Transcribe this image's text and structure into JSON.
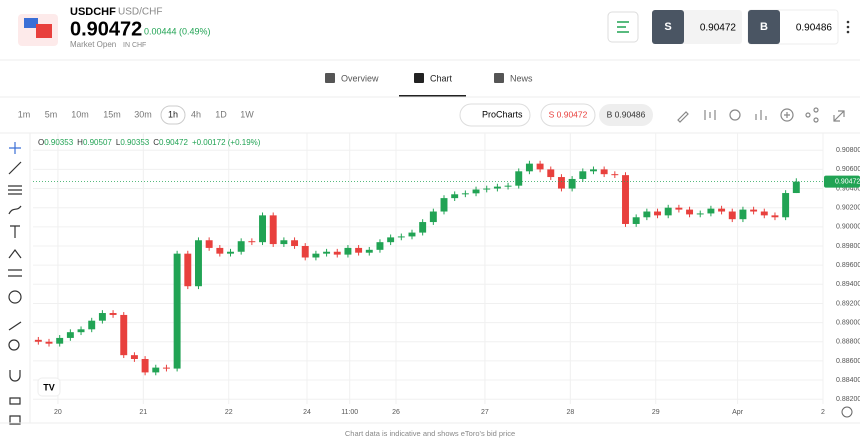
{
  "header": {
    "symbol": "USDCHF",
    "pair": "USD/CHF",
    "price": "0.90472",
    "change": "0.00444 (0.49%)",
    "status": "Market Open",
    "currency": "IN CHF",
    "sell": {
      "label": "S",
      "price": "0.90472"
    },
    "buy": {
      "label": "B",
      "price": "0.90486"
    }
  },
  "tabs": [
    "Overview",
    "Chart",
    "News"
  ],
  "toolbar": {
    "timeframes": [
      "1m",
      "5m",
      "10m",
      "15m",
      "30m",
      "1h",
      "4h",
      "1D",
      "1W"
    ],
    "procharts": "ProCharts",
    "sell": "S 0.90472",
    "buy": "B 0.90486"
  },
  "ohlc_legend": {
    "labels": [
      "O",
      "H",
      "L",
      "C"
    ],
    "change": "+0.00172 (+0.19%)"
  },
  "footer": "Chart data is indicative and shows eToro's bid price",
  "chart_data": {
    "type": "candlestick",
    "up_color": "#21a354",
    "down_color": "#e8403d",
    "x": [
      1.5,
      4.5,
      7.5,
      10.5,
      13.5,
      16.5,
      19.5,
      22.5,
      25.5,
      28.5,
      31.5,
      34.5,
      37.5,
      40.5,
      43.5,
      46.5,
      49.5,
      52.5,
      55.5,
      58.5,
      61.5,
      64.5,
      67.5,
      70.5,
      73.5,
      76.5,
      79.5,
      82.5,
      85.5,
      88.5,
      91.5,
      94.5,
      97.5,
      100.5,
      103.5,
      106.5,
      109.5,
      112.5,
      115.5,
      118.5,
      121.5,
      124.5,
      127.5,
      130.5,
      133.5,
      136.5,
      139.5,
      142.5,
      145.5,
      148.5,
      151.5,
      154.5,
      157.5,
      160.5,
      163.5,
      166.5,
      169.5,
      172.5,
      175.5,
      178.5,
      181.5,
      184.5,
      187.5,
      190.5,
      193.5,
      196.5,
      199.5,
      202.5,
      205.5,
      208.5,
      211.5,
      214.5
    ],
    "open": [
      0.8882,
      0.888,
      0.8878,
      0.8884,
      0.889,
      0.8893,
      0.8902,
      0.891,
      0.8908,
      0.8866,
      0.8862,
      0.8848,
      0.8853,
      0.8852,
      0.8972,
      0.8938,
      0.8986,
      0.8978,
      0.8972,
      0.8974,
      0.8985,
      0.8984,
      0.9012,
      0.8982,
      0.8986,
      0.898,
      0.8968,
      0.8972,
      0.8974,
      0.8971,
      0.8978,
      0.8973,
      0.8976,
      0.8984,
      0.8989,
      0.899,
      0.8994,
      0.9005,
      0.9016,
      0.903,
      0.9034,
      0.9035,
      0.9039,
      0.904,
      0.9042,
      0.9043,
      0.9058,
      0.9066,
      0.906,
      0.9052,
      0.904,
      0.905,
      0.9058,
      0.906,
      0.9055,
      0.9054,
      0.9003,
      0.901,
      0.9016,
      0.9012,
      0.902,
      0.9018,
      0.9013,
      0.9014,
      0.9019,
      0.9016,
      0.9008,
      0.9018,
      0.9016,
      0.9012,
      0.901,
      0.90353
    ],
    "high": [
      0.8885,
      0.8883,
      0.8887,
      0.8893,
      0.8896,
      0.8905,
      0.8913,
      0.8913,
      0.8911,
      0.8869,
      0.8865,
      0.8856,
      0.8856,
      0.8975,
      0.8975,
      0.8989,
      0.8989,
      0.8981,
      0.8977,
      0.8988,
      0.8988,
      0.9015,
      0.9015,
      0.8989,
      0.8989,
      0.8983,
      0.8975,
      0.8977,
      0.8977,
      0.8981,
      0.8981,
      0.8979,
      0.8987,
      0.8992,
      0.8993,
      0.8997,
      0.9008,
      0.9019,
      0.9033,
      0.9037,
      0.9038,
      0.9042,
      0.9043,
      0.9045,
      0.9046,
      0.9061,
      0.9069,
      0.9069,
      0.9063,
      0.9055,
      0.9053,
      0.9061,
      0.9063,
      0.9063,
      0.9058,
      0.9057,
      0.9013,
      0.9019,
      0.9019,
      0.9023,
      0.9023,
      0.9021,
      0.9017,
      0.9022,
      0.9022,
      0.9019,
      0.9021,
      0.9021,
      0.9019,
      0.9015,
      0.90383,
      0.90507
    ],
    "low": [
      0.8877,
      0.8875,
      0.8875,
      0.8881,
      0.8887,
      0.889,
      0.8899,
      0.8905,
      0.8863,
      0.8859,
      0.8845,
      0.8845,
      0.8849,
      0.8849,
      0.8935,
      0.8935,
      0.8975,
      0.8969,
      0.8969,
      0.8971,
      0.8981,
      0.8981,
      0.8979,
      0.8979,
      0.8977,
      0.8965,
      0.8965,
      0.8969,
      0.8968,
      0.8968,
      0.897,
      0.897,
      0.8973,
      0.8981,
      0.8986,
      0.8987,
      0.8991,
      0.9002,
      0.9013,
      0.9027,
      0.9031,
      0.9032,
      0.9036,
      0.9037,
      0.9039,
      0.904,
      0.9055,
      0.9057,
      0.9049,
      0.9037,
      0.9037,
      0.9047,
      0.9055,
      0.9052,
      0.9051,
      0.9,
      0.9,
      0.9007,
      0.9009,
      0.9009,
      0.9015,
      0.901,
      0.901,
      0.9011,
      0.9013,
      0.9005,
      0.9005,
      0.9013,
      0.9009,
      0.9007,
      0.9007,
      0.90353
    ],
    "close": [
      0.888,
      0.8878,
      0.8884,
      0.889,
      0.8893,
      0.8902,
      0.891,
      0.8908,
      0.8866,
      0.8862,
      0.8848,
      0.8853,
      0.8852,
      0.8972,
      0.8938,
      0.8986,
      0.8978,
      0.8972,
      0.8974,
      0.8985,
      0.8984,
      0.9012,
      0.8982,
      0.8986,
      0.898,
      0.8968,
      0.8972,
      0.8974,
      0.8971,
      0.8978,
      0.8973,
      0.8976,
      0.8984,
      0.8989,
      0.899,
      0.8994,
      0.9005,
      0.9016,
      0.903,
      0.9034,
      0.9035,
      0.9039,
      0.904,
      0.9042,
      0.9043,
      0.9058,
      0.9066,
      0.906,
      0.9052,
      0.904,
      0.905,
      0.9058,
      0.906,
      0.9055,
      0.9054,
      0.9003,
      0.901,
      0.9016,
      0.9012,
      0.902,
      0.9018,
      0.9013,
      0.9014,
      0.9019,
      0.9016,
      0.9008,
      0.9018,
      0.9016,
      0.9012,
      0.901,
      0.90353,
      0.90472
    ],
    "xlim": [
      0,
      222
    ],
    "xticks": [
      {
        "value": 7,
        "label": "20"
      },
      {
        "value": 31,
        "label": "21"
      },
      {
        "value": 55,
        "label": "22"
      },
      {
        "value": 77,
        "label": "24"
      },
      {
        "value": 89,
        "label": "11:00"
      },
      {
        "value": 102,
        "label": "26"
      },
      {
        "value": 127,
        "label": "27"
      },
      {
        "value": 151,
        "label": "28"
      },
      {
        "value": 175,
        "label": "29"
      },
      {
        "value": 198,
        "label": "Apr"
      },
      {
        "value": 222,
        "label": "2"
      }
    ],
    "ylim": [
      0.8815,
      0.9098
    ],
    "yticks": [
      {
        "value": 0.908,
        "label": "0.90800"
      },
      {
        "value": 0.906,
        "label": "0.90600"
      },
      {
        "value": 0.904,
        "label": "0.90400"
      },
      {
        "value": 0.902,
        "label": "0.90200"
      },
      {
        "value": 0.9,
        "label": "0.90000"
      },
      {
        "value": 0.898,
        "label": "0.89800"
      },
      {
        "value": 0.896,
        "label": "0.89600"
      },
      {
        "value": 0.894,
        "label": "0.89400"
      },
      {
        "value": 0.892,
        "label": "0.89200"
      },
      {
        "value": 0.89,
        "label": "0.89000"
      },
      {
        "value": 0.888,
        "label": "0.88800"
      },
      {
        "value": 0.886,
        "label": "0.88600"
      },
      {
        "value": 0.884,
        "label": "0.88400"
      },
      {
        "value": 0.882,
        "label": "0.88200"
      }
    ],
    "grid": true
  }
}
